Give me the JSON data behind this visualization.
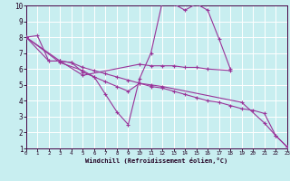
{
  "bg_color": "#c8eef0",
  "line_color": "#993399",
  "grid_color": "#ffffff",
  "xlabel": "Windchill (Refroidissement éolien,°C)",
  "xlim": [
    0,
    23
  ],
  "ylim": [
    1,
    10
  ],
  "yticks": [
    1,
    2,
    3,
    4,
    5,
    6,
    7,
    8,
    9,
    10
  ],
  "xticks": [
    0,
    1,
    2,
    3,
    4,
    5,
    6,
    7,
    8,
    9,
    10,
    11,
    12,
    13,
    14,
    15,
    16,
    17,
    18,
    19,
    20,
    21,
    22,
    23
  ],
  "series": [
    {
      "x": [
        0,
        1,
        2,
        3,
        4,
        5,
        6,
        7,
        8,
        9,
        10,
        11,
        12,
        13,
        14,
        15,
        16,
        17,
        18
      ],
      "y": [
        8.0,
        8.1,
        6.5,
        6.5,
        6.4,
        5.8,
        5.5,
        4.4,
        3.3,
        2.5,
        5.4,
        7.0,
        10.2,
        10.1,
        9.7,
        10.1,
        9.7,
        7.9,
        6.0
      ]
    },
    {
      "x": [
        0,
        2,
        3,
        5,
        10,
        11,
        12,
        13,
        14,
        15,
        16,
        18
      ],
      "y": [
        8.0,
        6.5,
        6.5,
        5.6,
        6.3,
        6.2,
        6.2,
        6.2,
        6.1,
        6.1,
        6.0,
        5.9
      ]
    },
    {
      "x": [
        0,
        3,
        5,
        6,
        7,
        8,
        9,
        10,
        11,
        12,
        19,
        21,
        22,
        23
      ],
      "y": [
        8.0,
        6.4,
        5.9,
        5.5,
        5.2,
        4.9,
        4.6,
        5.1,
        5.0,
        4.9,
        3.9,
        2.6,
        1.8,
        1.1
      ]
    },
    {
      "x": [
        0,
        3,
        4,
        5,
        6,
        7,
        8,
        9,
        10,
        11,
        12,
        13,
        14,
        15,
        16,
        17,
        18,
        19,
        20,
        21,
        22,
        23
      ],
      "y": [
        8.0,
        6.5,
        6.4,
        6.1,
        5.9,
        5.7,
        5.5,
        5.3,
        5.1,
        4.9,
        4.8,
        4.6,
        4.4,
        4.2,
        4.0,
        3.9,
        3.7,
        3.5,
        3.4,
        3.2,
        1.8,
        1.1
      ]
    }
  ]
}
